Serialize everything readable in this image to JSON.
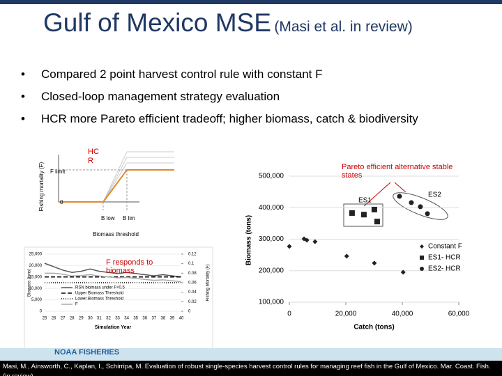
{
  "header": {
    "title": "Gulf of Mexico MSE",
    "subtitle": "(Masi et al. in review)"
  },
  "bullets": [
    "Compared 2 point harvest control rule with constant F",
    "Closed-loop management strategy evaluation",
    "HCR more Pareto efficient tradeoff; higher biomass, catch & biodiversity"
  ],
  "hcr_diagram": {
    "note": "HC R",
    "y_label": "Fishing mortality (F)",
    "f_label": "F limit",
    "zero": "0",
    "b_low": "B low",
    "b_lim": "B lim",
    "x_label": "Biomass threshold"
  },
  "annotations": {
    "pareto": "Pareto efficient alternative stable states",
    "f_responds": "F responds to biomass",
    "es1": "ES1",
    "es2": "ES2"
  },
  "chart_data": [
    {
      "type": "scatter",
      "x_label": "Catch (tons)",
      "y_label": "Biomass (tons)",
      "xlim": [
        0,
        60000
      ],
      "ylim": [
        100000,
        500000
      ],
      "xticks": [
        0,
        {
          "value": 20000,
          "label": "20,000"
        },
        {
          "value": 40000,
          "label": "40,000"
        },
        {
          "value": 60000,
          "label": "60,000"
        }
      ],
      "yticks": [
        {
          "value": 100000,
          "label": "100,000"
        },
        {
          "value": 200000,
          "label": "200,000"
        },
        {
          "value": 300000,
          "label": "300,000"
        },
        {
          "value": 400000,
          "label": "400,000"
        },
        {
          "value": 500000,
          "label": "500,000"
        }
      ],
      "series": [
        {
          "name": "Constant F",
          "color": "#222222",
          "marker": "diamond",
          "x": [
            0,
            5200,
            6200,
            9100,
            20300,
            30100,
            40300
          ],
          "values": [
            277000,
            301000,
            297000,
            292000,
            246000,
            224000,
            195000
          ]
        },
        {
          "name": "ES1- HCR",
          "color": "#222222",
          "marker": "square",
          "x": [
            22200,
            26400,
            30100,
            31100
          ],
          "values": [
            383000,
            378000,
            394000,
            356000
          ]
        },
        {
          "name": "ES2- HCR",
          "color": "#222222",
          "marker": "circle",
          "x": [
            39000,
            43200,
            46400,
            48900
          ],
          "values": [
            436000,
            416000,
            403000,
            381000
          ]
        }
      ]
    },
    {
      "type": "line",
      "x_label": "Simulation Year",
      "y_label": "Biomass (tons)",
      "y2_label": "Fishing Mortality (F)",
      "x": [
        25,
        26,
        27,
        28,
        29,
        30,
        31,
        32,
        33,
        34,
        35,
        36,
        37,
        38,
        39,
        40
      ],
      "xlim": [
        25,
        40
      ],
      "ylim": [
        0,
        25000
      ],
      "y2lim": [
        0,
        0.12
      ],
      "yticks": [
        0,
        {
          "value": 5000,
          "label": "5,000"
        },
        {
          "value": 10000,
          "label": "10,000"
        },
        {
          "value": 15000,
          "label": "15,000"
        },
        {
          "value": 20000,
          "label": "20,000"
        },
        {
          "value": 25000,
          "label": "25,000"
        }
      ],
      "y2ticks": [
        0,
        0.02,
        0.04,
        0.06,
        0.08,
        0.1,
        0.12
      ],
      "series": [
        {
          "name": "RSN biomass under F×0.5",
          "color": "#555555",
          "dash": "none",
          "values": [
            21000,
            19500,
            18000,
            17000,
            17500,
            18500,
            17500,
            17000,
            16500,
            17000,
            16500,
            16000,
            15500,
            16000,
            15500,
            15000
          ]
        },
        {
          "name": "Upper Biomass Threshold",
          "color": "#000000",
          "dash": "6 3",
          "values": [
            15000,
            15000,
            15000,
            15000,
            15000,
            15000,
            15000,
            15000,
            15000,
            15000,
            15000,
            15000,
            15000,
            15000,
            15000,
            15000
          ]
        },
        {
          "name": "Lower Biomass Threshold",
          "color": "#000000",
          "dash": "1 2",
          "values": [
            12500,
            12500,
            12500,
            12500,
            12500,
            12500,
            12500,
            12500,
            12500,
            12500,
            12500,
            12500,
            12500,
            12500,
            12500,
            12500
          ]
        },
        {
          "name": "F",
          "color": "#aaaaaa",
          "dash": "none",
          "axis": "y2",
          "values": [
            0.08,
            0.08,
            0.078,
            0.074,
            0.075,
            0.077,
            0.074,
            0.072,
            0.07,
            0.071,
            0.069,
            0.067,
            0.065,
            0.066,
            0.064,
            0.062
          ]
        }
      ]
    }
  ],
  "footer": {
    "logo": "NOAA FISHERIES",
    "citation": "Masi, M., Ainsworth, C., Kaplan, I., Schirripa, M. Evaluation of robust single-species harvest control rules for managing reef fish in the Gulf of Mexico. Mar. Coast. Fish. (in review)."
  }
}
